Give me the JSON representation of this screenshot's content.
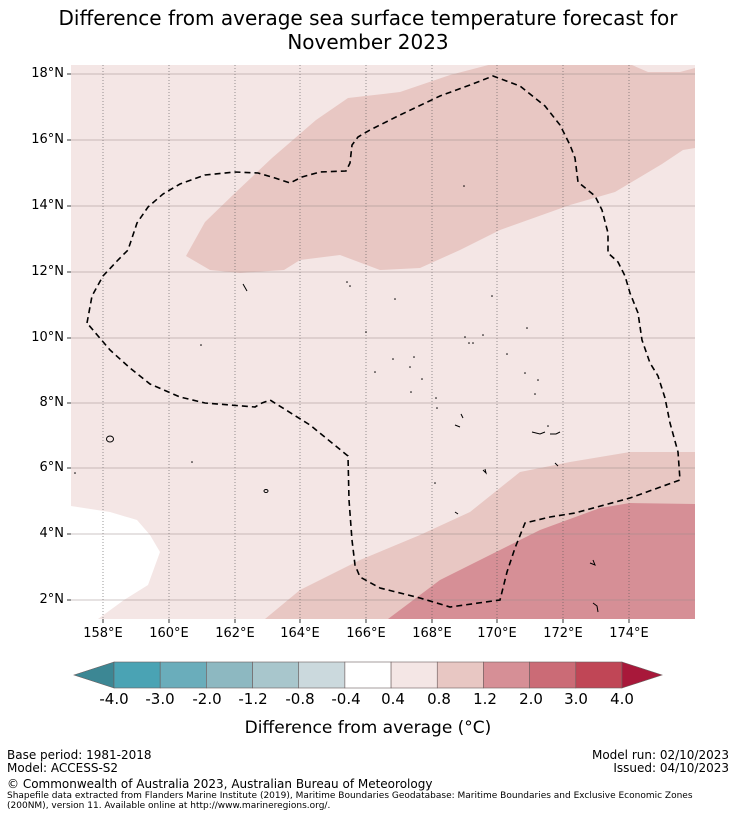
{
  "title_line1": "Difference from average sea surface temperature forecast for",
  "title_line2": "November 2023",
  "map": {
    "lat_labels": [
      "18°N",
      "16°N",
      "14°N",
      "12°N",
      "10°N",
      "8°N",
      "6°N",
      "4°N",
      "2°N"
    ],
    "lon_labels": [
      "158°E",
      "160°E",
      "162°E",
      "164°E",
      "166°E",
      "168°E",
      "170°E",
      "172°E",
      "174°E"
    ]
  },
  "colorbar": {
    "ticks": [
      "-4.0",
      "-3.0",
      "-2.0",
      "-1.2",
      "-0.8",
      "-0.4",
      "0.4",
      "0.8",
      "1.2",
      "2.0",
      "3.0",
      "4.0"
    ],
    "colors": [
      "#3c8794",
      "#4aa3b4",
      "#6aadbb",
      "#8db8c1",
      "#a8c6cc",
      "#cbd9dd",
      "#ffffff",
      "#f4e6e5",
      "#e8c7c3",
      "#d68f96",
      "#cb6b76",
      "#c04656",
      "#a8183a"
    ],
    "label": "Difference from average (°C)"
  },
  "footer": {
    "base_period": "Base period: 1981-2018",
    "model": "Model: ACCESS-S2",
    "model_run": "Model run: 02/10/2023",
    "issued": "Issued: 04/10/2023",
    "copyright": "© Commonwealth of Australia 2023, Australian Bureau of Meteorology",
    "source_line1": "Shapefile data extracted from Flanders Marine Institute (2019), Maritime Boundaries Geodatabase: Maritime Boundaries and Exclusive Economic Zones",
    "source_line2": "(200NM), version 11. Available online at http://www.marineregions.org/."
  }
}
